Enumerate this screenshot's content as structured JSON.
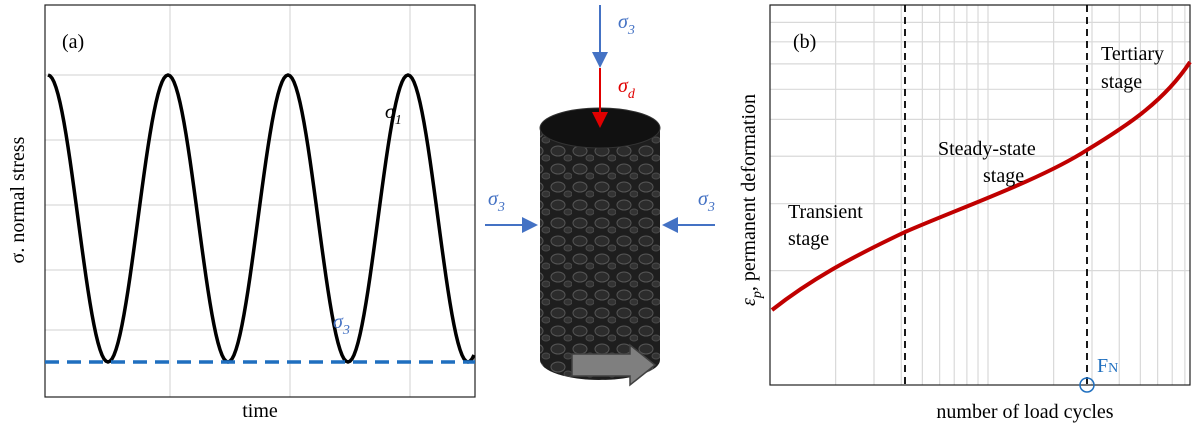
{
  "panel_a": {
    "label": "(a)",
    "y_label": "σ. normal stress",
    "x_label": "time",
    "sigma_1": {
      "symbol": "σ",
      "sub": "1"
    },
    "sigma_3": {
      "symbol": "σ",
      "sub": "3"
    }
  },
  "specimen": {
    "top_load": {
      "symbol": "σ",
      "sub": "3"
    },
    "deviator": {
      "symbol": "σ",
      "sub": "d"
    },
    "left_load": {
      "symbol": "σ",
      "sub": "3"
    },
    "right_load": {
      "symbol": "σ",
      "sub": "3"
    }
  },
  "panel_b": {
    "label": "(b)",
    "y_label_symbol": "ε",
    "y_label_sub": "p",
    "y_label_rest": ", permanent deformation",
    "x_label": "number of load cycles",
    "stages": [
      {
        "line1": "Transient",
        "line2": "stage"
      },
      {
        "line1": "Steady-state",
        "line2": "stage"
      },
      {
        "line1": "Tertiary",
        "line2": "stage"
      }
    ],
    "fn": {
      "symbol": "F",
      "sub": "N"
    }
  }
}
